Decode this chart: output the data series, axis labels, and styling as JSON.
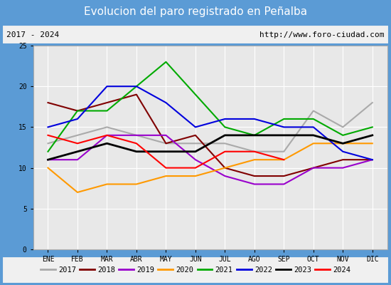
{
  "title": "Evolucion del paro registrado en Peñalba",
  "subtitle_left": "2017 - 2024",
  "subtitle_right": "http://www.foro-ciudad.com",
  "months": [
    "ENE",
    "FEB",
    "MAR",
    "ABR",
    "MAY",
    "JUN",
    "JUL",
    "AGO",
    "SEP",
    "OCT",
    "NOV",
    "DIC"
  ],
  "series": {
    "2017": {
      "color": "#aaaaaa",
      "lw": 1.5,
      "data": [
        13,
        14,
        15,
        14,
        13,
        13,
        13,
        12,
        12,
        17,
        15,
        18
      ]
    },
    "2018": {
      "color": "#800000",
      "lw": 1.5,
      "data": [
        18,
        17,
        18,
        19,
        13,
        14,
        10,
        9,
        9,
        10,
        11,
        11
      ]
    },
    "2019": {
      "color": "#9900cc",
      "lw": 1.5,
      "data": [
        11,
        11,
        14,
        14,
        14,
        11,
        9,
        8,
        8,
        10,
        10,
        11
      ]
    },
    "2020": {
      "color": "#ff9900",
      "lw": 1.5,
      "data": [
        10,
        7,
        8,
        8,
        9,
        9,
        10,
        11,
        11,
        13,
        13,
        13
      ]
    },
    "2021": {
      "color": "#00aa00",
      "lw": 1.5,
      "data": [
        12,
        17,
        17,
        20,
        23,
        19,
        15,
        14,
        16,
        16,
        14,
        15
      ]
    },
    "2022": {
      "color": "#0000dd",
      "lw": 1.5,
      "data": [
        15,
        16,
        20,
        20,
        18,
        15,
        16,
        16,
        15,
        15,
        12,
        11
      ]
    },
    "2023": {
      "color": "#000000",
      "lw": 2.0,
      "data": [
        11,
        12,
        13,
        12,
        12,
        12,
        14,
        14,
        14,
        14,
        13,
        14
      ]
    },
    "2024": {
      "color": "#ff0000",
      "lw": 1.5,
      "data": [
        14,
        13,
        14,
        13,
        10,
        10,
        12,
        12,
        11,
        null,
        null,
        null
      ]
    }
  },
  "ylim": [
    0,
    25
  ],
  "yticks": [
    0,
    5,
    10,
    15,
    20,
    25
  ],
  "title_color": "#ffffff",
  "title_bg": "#5b9bd5",
  "outer_bg": "#5b9bd5",
  "plot_bg": "#e8e8e8",
  "subtitle_bg": "#f0f0f0",
  "legend_bg": "#f0f0f0",
  "grid_color": "#ffffff",
  "border_color": "#5b9bd5"
}
